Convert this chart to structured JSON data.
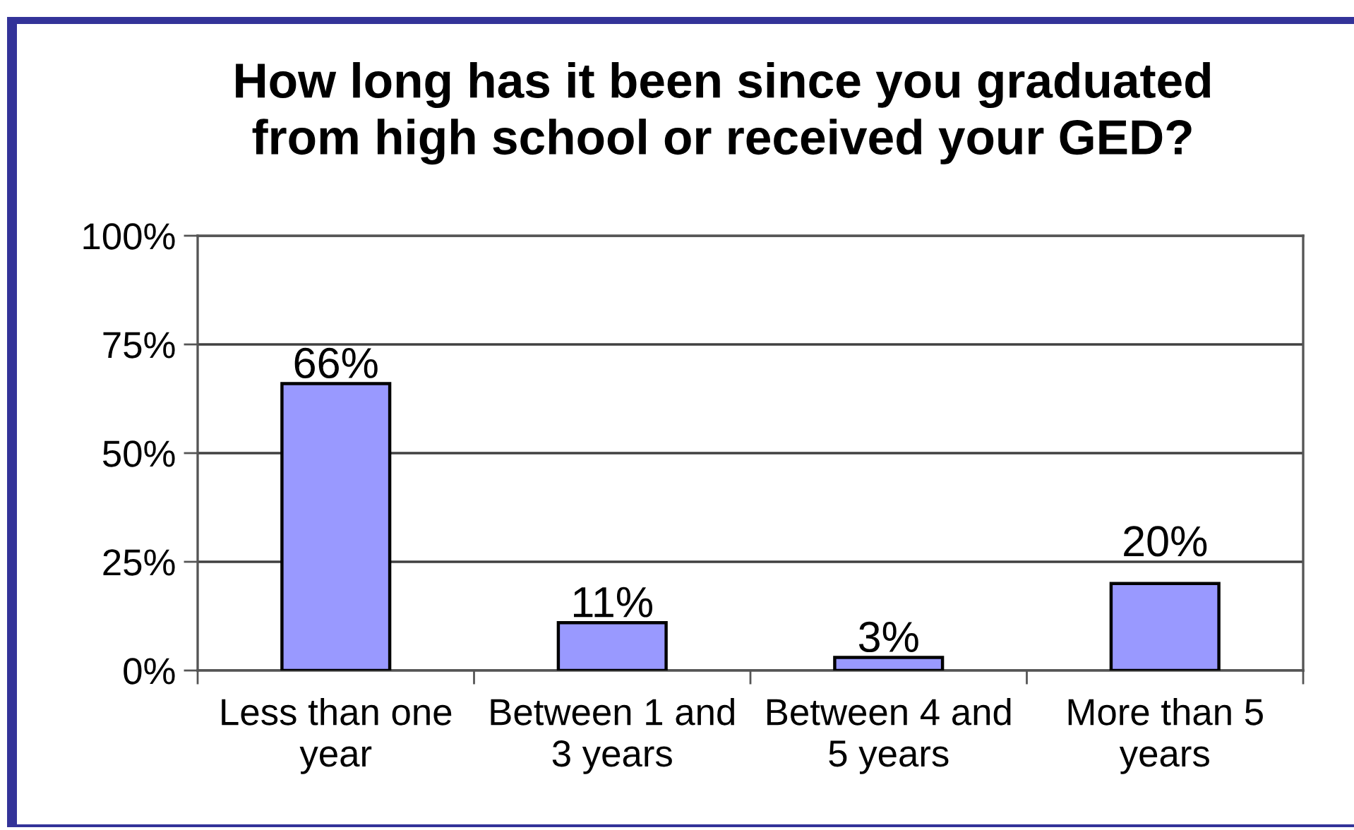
{
  "chart_data": {
    "type": "bar",
    "title": "How long has it been since you graduated\nfrom high school or received your GED?",
    "categories": [
      "Less than one\nyear",
      "Between 1 and\n3 years",
      "Between 4 and\n5 years",
      "More than 5\nyears"
    ],
    "values": [
      66,
      11,
      3,
      20
    ],
    "color": "#9999ff",
    "value_labels": [
      "66%",
      "11%",
      "3%",
      "20%"
    ],
    "ylim": [
      0,
      100
    ],
    "yticks": [
      {
        "value": 0,
        "label": "0%"
      },
      {
        "value": 25,
        "label": "25%"
      },
      {
        "value": 50,
        "label": "50%"
      },
      {
        "value": 75,
        "label": "75%"
      },
      {
        "value": 100,
        "label": "100%"
      }
    ],
    "grid": "y",
    "legend": false
  }
}
